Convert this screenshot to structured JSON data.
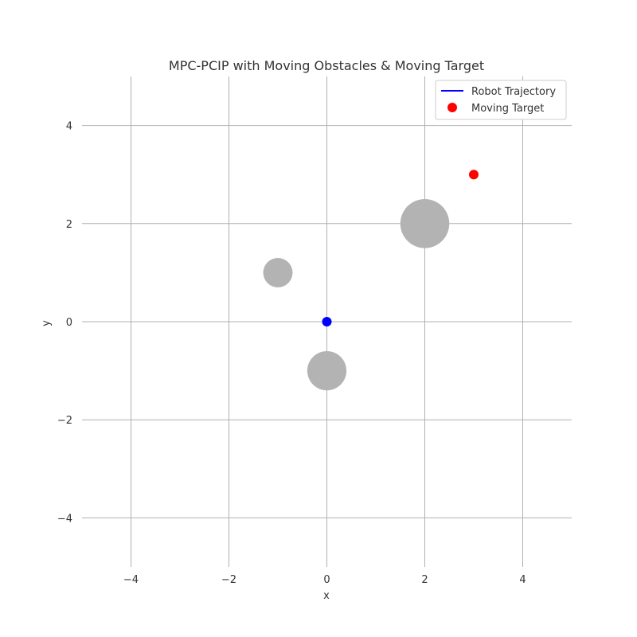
{
  "chart_data": {
    "type": "scatter",
    "title": "MPC-PCIP with Moving Obstacles & Moving Target",
    "xlabel": "x",
    "ylabel": "y",
    "xlim": [
      -5,
      5
    ],
    "ylim": [
      -5,
      5
    ],
    "xticks": [
      -4,
      -2,
      0,
      2,
      4
    ],
    "yticks": [
      -4,
      -2,
      0,
      2,
      4
    ],
    "xtick_labels": [
      "−4",
      "−2",
      "0",
      "2",
      "4"
    ],
    "ytick_labels": [
      "−4",
      "−2",
      "0",
      "2",
      "4"
    ],
    "grid": true,
    "legend_position": "top-right",
    "robot": {
      "name": "Robot Trajectory",
      "x": 0,
      "y": 0,
      "color": "#0000ff"
    },
    "target": {
      "name": "Moving Target",
      "x": 3,
      "y": 3,
      "color": "#ff0000"
    },
    "obstacles": [
      {
        "x": -1,
        "y": 1,
        "radius": 0.3
      },
      {
        "x": 2,
        "y": 2,
        "radius": 0.5
      },
      {
        "x": 0,
        "y": -1,
        "radius": 0.4
      }
    ],
    "obstacle_color": "#b3b3b3",
    "grid_color": "#b0b0b0"
  }
}
